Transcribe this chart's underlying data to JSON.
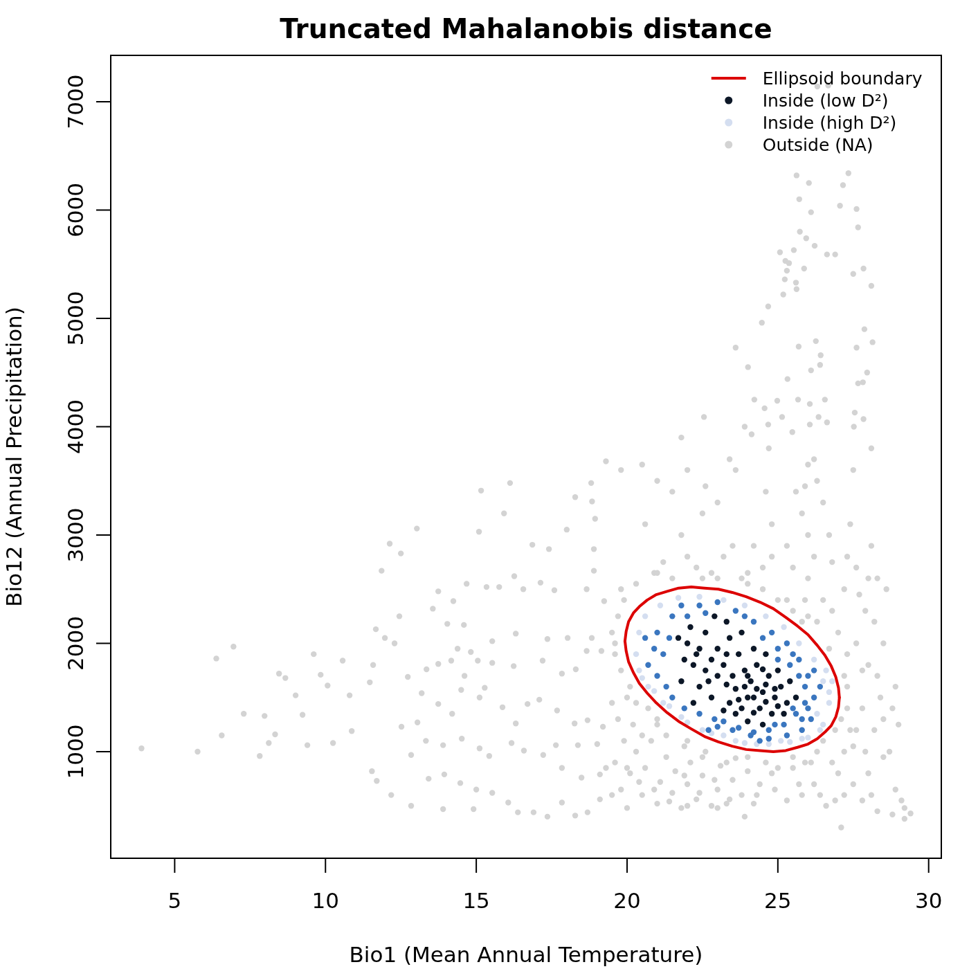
{
  "chart_data": {
    "type": "scatter",
    "title": "Truncated Mahalanobis distance",
    "xlabel": "Bio1 (Mean Annual Temperature)",
    "ylabel": "Bio12 (Annual Precipitation)",
    "xlim": [
      2.88,
      30.42
    ],
    "ylim": [
      16,
      7428
    ],
    "xticks": [
      5,
      10,
      15,
      20,
      25,
      30
    ],
    "yticks": [
      1000,
      2000,
      3000,
      4000,
      5000,
      6000,
      7000
    ],
    "legend": "top right",
    "marker": "circle",
    "series": [
      {
        "name": "Ellipsoid boundary",
        "type": "line",
        "marker": "none",
        "color": "#dc0000",
        "x": [
          19.93,
          19.97,
          20.05,
          20.21,
          20.41,
          20.67,
          20.97,
          21.33,
          21.71,
          22.13,
          22.57,
          23.03,
          23.49,
          23.95,
          24.41,
          24.85,
          25.26,
          25.65,
          26.0,
          26.31,
          26.56,
          26.77,
          26.92,
          27.01,
          27.04
        ],
        "values": [
          2020,
          2110,
          2200,
          2280,
          2340,
          2400,
          2450,
          2480,
          2510,
          2520,
          2510,
          2500,
          2470,
          2430,
          2380,
          2320,
          2240,
          2160,
          2080,
          1980,
          1890,
          1790,
          1690,
          1590,
          1500
        ]
      },
      {
        "type": "line",
        "marker": "none",
        "color": "#dc0000",
        "x": [
          19.93,
          19.97,
          20.05,
          20.21,
          20.41,
          20.67,
          20.97,
          21.33,
          21.71,
          22.13,
          22.57,
          23.03,
          23.49,
          23.95,
          24.41,
          24.85,
          25.26,
          25.65,
          26.0,
          26.31,
          26.56,
          26.77,
          26.92,
          27.01,
          27.04
        ],
        "values": [
          2020,
          1930,
          1830,
          1730,
          1630,
          1540,
          1450,
          1360,
          1280,
          1210,
          1140,
          1090,
          1050,
          1020,
          1010,
          1000,
          1010,
          1040,
          1070,
          1120,
          1180,
          1240,
          1320,
          1410,
          1500
        ]
      },
      {
        "name": "Inside (low D²)",
        "color": "#0c1727",
        "x": [
          22.0,
          22.3,
          22.6,
          22.8,
          23.0,
          23.2,
          23.4,
          23.5,
          23.7,
          23.9,
          24.1,
          24.3,
          24.5,
          24.7,
          24.9,
          25.1,
          25.3,
          24.0,
          23.8,
          24.4,
          24.8,
          23.6,
          23.3,
          23.0,
          22.6,
          22.4,
          22.2,
          21.9,
          21.7,
          22.1,
          22.9,
          23.3,
          23.8,
          24.2,
          24.6,
          25.0,
          25.4,
          25.6,
          25.2,
          24.5,
          24.0,
          23.4,
          22.8,
          22.2,
          21.8,
          24.3,
          24.6,
          23.9,
          23.7,
          24.2,
          24.6,
          25.0,
          24.2,
          23.6,
          24.0,
          24.5,
          24.9,
          23.2,
          22.7,
          23.3,
          22.4
        ],
        "values": [
          2000,
          1900,
          2100,
          1850,
          1950,
          1800,
          2050,
          1700,
          1900,
          1750,
          1650,
          1800,
          1550,
          1700,
          1500,
          1600,
          1450,
          1500,
          1400,
          1400,
          1350,
          1580,
          1620,
          1700,
          1750,
          1600,
          1800,
          1850,
          2050,
          2150,
          2250,
          2200,
          2100,
          1950,
          1900,
          1750,
          1650,
          1500,
          1350,
          1250,
          1280,
          1450,
          1500,
          1450,
          1650,
          1580,
          1620,
          1600,
          1480,
          1500,
          1460,
          1420,
          1360,
          1350,
          1700,
          1760,
          1580,
          1380,
          1650,
          1900,
          1950
        ]
      },
      {
        "color": "#3a76bf",
        "x": [
          21.0,
          21.2,
          21.0,
          21.5,
          21.8,
          22.4,
          23.0,
          23.6,
          24.2,
          24.8,
          25.3,
          25.7,
          26.0,
          26.2,
          26.1,
          25.8,
          25.3,
          24.7,
          24.1,
          23.5,
          22.9,
          22.4,
          21.9,
          21.5,
          20.7,
          20.6,
          21.3,
          25.9,
          25.6,
          24.9,
          23.2,
          26.4,
          25.5,
          24.5,
          22.0,
          20.9,
          22.6,
          21.4,
          23.9,
          25.0,
          26.2,
          24.4,
          22.7,
          25.9,
          25.7,
          25.5,
          25.2,
          24.7,
          24.2,
          23.7,
          23.0,
          26.0,
          25.4,
          25.0,
          25.8
        ],
        "values": [
          1700,
          1900,
          2100,
          2250,
          2350,
          2350,
          2380,
          2300,
          2200,
          2100,
          2000,
          1850,
          1700,
          1500,
          1300,
          1200,
          1150,
          1120,
          1150,
          1200,
          1300,
          1350,
          1400,
          1500,
          1800,
          2050,
          1600,
          1450,
          1350,
          1250,
          1280,
          1600,
          1900,
          2050,
          2250,
          1950,
          2280,
          2050,
          2250,
          1950,
          1750,
          1100,
          1200,
          1600,
          1700,
          1400,
          1250,
          1200,
          1180,
          1220,
          1230,
          1400,
          1800,
          1850,
          1300
        ]
      },
      {
        "name": "Inside (high D²)",
        "color": "#d4def0",
        "x": [
          20.3,
          20.4,
          20.6,
          21.1,
          21.7,
          22.4,
          23.2,
          23.9,
          24.6,
          25.2,
          25.7,
          26.2,
          26.5,
          26.7,
          26.5,
          26.0,
          25.4,
          24.7,
          23.9,
          23.2,
          22.5,
          21.8,
          21.2,
          20.7,
          20.4,
          26.7,
          26.3,
          25.1,
          23.6,
          22.0,
          20.9,
          26.8,
          26.6,
          26.4,
          25.8,
          24.3,
          22.8,
          21.4,
          20.5
        ],
        "values": [
          1900,
          2100,
          2250,
          2350,
          2420,
          2430,
          2400,
          2350,
          2250,
          2150,
          2000,
          1850,
          1650,
          1450,
          1250,
          1130,
          1090,
          1070,
          1080,
          1150,
          1200,
          1320,
          1450,
          1600,
          1750,
          1550,
          1350,
          1100,
          1100,
          1270,
          1560,
          1650,
          1750,
          1200,
          1120,
          1070,
          1170,
          1420,
          1680
        ]
      },
      {
        "name": "Outside (NA)",
        "color": "#d3d3d3",
        "x": [
          3.9,
          5.76,
          6.38,
          6.95,
          6.56,
          7.29,
          7.98,
          8.33,
          7.82,
          8.46,
          8.67,
          8.12,
          9.01,
          9.24,
          9.61,
          9.84,
          9.4,
          10.07,
          10.57,
          10.8,
          10.25,
          10.87,
          11.67,
          11.97,
          12.13,
          12.5,
          11.86,
          13.03,
          12.45,
          12.29,
          11.58,
          11.47,
          11.54,
          11.7,
          12.18,
          12.84,
          15.16,
          16.12,
          15.09,
          15.92,
          18.0,
          16.86,
          17.41,
          13.74,
          14.68,
          15.34,
          15.76,
          13.56,
          14.24,
          14.59,
          16.26,
          17.13,
          16.56,
          14.04,
          14.38,
          15.53,
          16.31,
          14.82,
          17.36,
          18.03,
          15.05,
          13.74,
          13.35,
          14.17,
          14.61,
          15.53,
          16.24,
          17.59,
          17.2,
          17.84,
          18.3,
          18.66,
          19.15,
          18.83,
          18.9,
          18.66,
          19.24,
          18.81,
          18.84,
          18.94,
          18.9,
          18.28,
          12.73,
          12.52,
          13.05,
          13.19,
          13.74,
          14.2,
          14.5,
          15.11,
          15.28,
          15.87,
          16.31,
          16.7,
          17.09,
          17.68,
          18.26,
          18.69,
          19.2,
          13.33,
          13.9,
          14.52,
          15.11,
          15.43,
          16.17,
          16.58,
          17.22,
          17.64,
          18.37,
          19.01,
          13.42,
          13.94,
          14.47,
          15.0,
          15.53,
          16.06,
          16.38,
          16.9,
          17.36,
          17.84,
          18.28,
          18.69,
          19.1,
          17.84,
          18.49,
          19.1,
          12.84,
          13.9,
          14.91,
          19.3,
          26.31,
          26.67,
          26.03,
          25.62,
          27.16,
          27.34,
          25.71,
          26.1,
          27.06,
          27.61,
          27.66,
          25.73,
          25.94,
          26.22,
          25.07,
          25.53,
          26.63,
          26.9,
          25.25,
          25.37,
          25.3,
          25.87,
          27.5,
          27.84,
          25.23,
          25.6,
          25.62,
          28.1,
          25.18,
          24.68,
          24.47,
          27.87,
          23.6,
          25.69,
          26.26,
          27.61,
          28.14,
          24.01,
          25.32,
          26.1,
          26.4,
          26.42,
          27.96,
          27.66,
          27.82,
          24.22,
          24.98,
          25.67,
          26.56,
          26.06,
          22.55,
          27.55,
          24.56,
          25.14,
          26.35,
          27.84,
          23.9,
          24.68,
          27.52,
          24.13,
          25.48,
          26.06,
          26.63,
          19.8,
          20.5,
          22.6,
          23.4,
          21.0,
          21.8,
          24.7,
          19.6,
          19.8,
          20.0,
          20.1,
          20.3,
          20.5,
          20.6,
          20.8,
          21.0,
          21.1,
          21.3,
          21.5,
          21.6,
          21.8,
          22.0,
          22.1,
          22.3,
          22.5,
          22.6,
          22.8,
          23.0,
          23.1,
          23.3,
          23.5,
          23.6,
          23.8,
          24.0,
          24.2,
          24.4,
          24.6,
          23.9,
          24.9,
          25.3,
          25.7,
          26.1,
          26.4,
          26.9,
          25.0,
          24.3,
          23.4,
          22.9,
          22.4,
          21.9,
          21.4,
          20.9,
          20.4,
          20.0,
          19.5,
          19.3,
          23.0,
          22.0,
          27.1,
          25.5,
          25.8,
          26.6,
          27.2,
          27.8,
          28.3,
          28.8,
          29.2,
          29.4,
          29.2,
          28.0,
          28.5,
          27.0,
          26.2,
          27.5,
          28.1,
          28.9,
          29.1,
          26.5,
          26.8,
          19.7,
          20.0,
          20.2,
          20.1,
          20.7,
          21.0,
          21.3,
          19.9,
          20.5,
          19.8,
          19.5,
          27.1,
          27.3,
          27.5,
          27.8,
          28.0,
          28.2,
          27.6,
          28.4,
          28.8,
          28.9,
          27.3,
          27.6,
          27.9,
          28.3,
          28.5,
          29.0,
          28.7,
          27.2,
          27.8,
          27.2,
          27.9,
          28.3,
          28.6,
          27.0,
          26.5,
          26.0,
          25.5,
          25.0,
          24.5,
          25.3,
          25.8,
          26.3,
          26.0,
          25.6,
          26.7,
          27.3,
          27.6,
          28.1,
          28.1,
          27.5,
          24.8,
          24.2,
          23.8,
          23.2,
          22.8,
          22.3,
          21.8,
          21.2,
          20.9,
          20.6,
          21.5,
          22.0,
          23.0,
          23.6,
          24.6,
          22.5,
          19.7,
          19.8,
          21.5,
          22.0,
          22.5,
          23.0,
          23.5,
          24.0,
          24.5,
          24.8,
          25.8,
          26.3,
          26.8,
          27.2,
          27.7,
          28.2,
          28.5,
          28.0,
          25.5,
          26.2,
          26.8,
          27.4,
          26.0,
          26.5,
          26.2,
          25.9,
          19.6,
          19.5,
          19.9,
          20.3,
          21.0,
          25.9,
          26.7,
          27.3,
          27.4,
          26.9,
          26.3,
          25.5,
          24.0,
          22.0,
          21.0,
          20.3,
          19.6,
          24.0,
          25.3,
          26.0,
          21.9,
          22.5,
          23.3,
          24.8,
          25.9
        ],
        "values": [
          1030,
          1000,
          1860,
          1970,
          1150,
          1350,
          1330,
          1160,
          960,
          1720,
          1680,
          1080,
          1520,
          1340,
          1900,
          1710,
          1060,
          1610,
          1840,
          1520,
          1080,
          1190,
          2130,
          2050,
          2920,
          2830,
          2670,
          3060,
          2250,
          2000,
          1800,
          1640,
          820,
          730,
          600,
          500,
          3410,
          3480,
          3030,
          3200,
          3050,
          2910,
          2870,
          2480,
          2550,
          2520,
          2520,
          2320,
          2390,
          2170,
          2620,
          2560,
          2500,
          2180,
          1950,
          2020,
          2090,
          1920,
          2040,
          2050,
          1840,
          1810,
          1760,
          1840,
          1700,
          1820,
          1790,
          2490,
          1840,
          1720,
          1760,
          1930,
          1930,
          2050,
          2670,
          2500,
          2390,
          3480,
          3310,
          3150,
          2870,
          3350,
          1690,
          1230,
          1270,
          1540,
          1440,
          1350,
          1570,
          1500,
          1590,
          1410,
          1260,
          1440,
          1480,
          1380,
          1260,
          1290,
          1230,
          1100,
          1060,
          1120,
          1030,
          960,
          1080,
          1010,
          970,
          1060,
          1060,
          1070,
          750,
          790,
          710,
          650,
          620,
          530,
          440,
          440,
          400,
          530,
          410,
          440,
          560,
          850,
          760,
          790,
          970,
          470,
          470,
          3680,
          7140,
          7150,
          6250,
          6320,
          6230,
          6340,
          6100,
          5980,
          6040,
          6010,
          5840,
          5800,
          5740,
          5670,
          5610,
          5630,
          5590,
          5590,
          5530,
          5510,
          5440,
          5460,
          5410,
          5460,
          5360,
          5330,
          5270,
          5300,
          5220,
          5110,
          4960,
          4900,
          4730,
          4740,
          4790,
          4730,
          4780,
          4550,
          4440,
          4520,
          4570,
          4660,
          4500,
          4400,
          4410,
          4250,
          4240,
          4250,
          4250,
          4210,
          4090,
          4130,
          4170,
          4090,
          4090,
          4070,
          4000,
          4020,
          4000,
          3930,
          3950,
          4020,
          4040,
          3600,
          3650,
          3450,
          3700,
          3500,
          3900,
          3800,
          900,
          650,
          480,
          800,
          1000,
          600,
          850,
          1100,
          520,
          720,
          950,
          620,
          820,
          480,
          700,
          900,
          560,
          780,
          1000,
          500,
          650,
          870,
          520,
          740,
          940,
          600,
          820,
          520,
          700,
          900,
          400,
          650,
          550,
          700,
          900,
          600,
          550,
          850,
          600,
          560,
          740,
          620,
          780,
          540,
          650,
          720,
          850,
          600,
          850,
          480,
          500,
          300,
          850,
          600,
          500,
          600,
          550,
          450,
          420,
          480,
          430,
          380,
          800,
          950,
          800,
          700,
          700,
          600,
          650,
          550,
          1100,
          900,
          1300,
          1500,
          1250,
          1600,
          1400,
          1250,
          1150,
          1100,
          1150,
          1750,
          1450,
          1300,
          1600,
          1050,
          1400,
          1800,
          1200,
          2000,
          1500,
          1400,
          1600,
          1900,
          1200,
          1000,
          1700,
          1300,
          1250,
          1000,
          1000,
          1750,
          1700,
          2300,
          2600,
          2500,
          2100,
          2400,
          2600,
          2300,
          2400,
          2700,
          2900,
          3200,
          3500,
          3650,
          3400,
          3000,
          2800,
          2700,
          2900,
          3800,
          3600,
          3100,
          2900,
          2600,
          2800,
          2650,
          2700,
          3000,
          2750,
          2650,
          3100,
          3400,
          3600,
          3300,
          3600,
          3400,
          3200,
          2250,
          2500,
          2600,
          2800,
          2600,
          2600,
          2900,
          2650,
          2500,
          2800,
          2200,
          2200,
          2300,
          2500,
          2450,
          2200,
          2000,
          2600,
          2700,
          2800,
          2750,
          3100,
          3000,
          3300,
          3700,
          3450,
          1900,
          2100,
          2400,
          2550,
          2650,
          2400,
          1950,
          1400,
          1200,
          1200,
          1000,
          950,
          950,
          1100,
          1300,
          1450,
          2000,
          2550,
          2400,
          2250,
          1050,
          950,
          900,
          800,
          900
        ]
      }
    ]
  }
}
